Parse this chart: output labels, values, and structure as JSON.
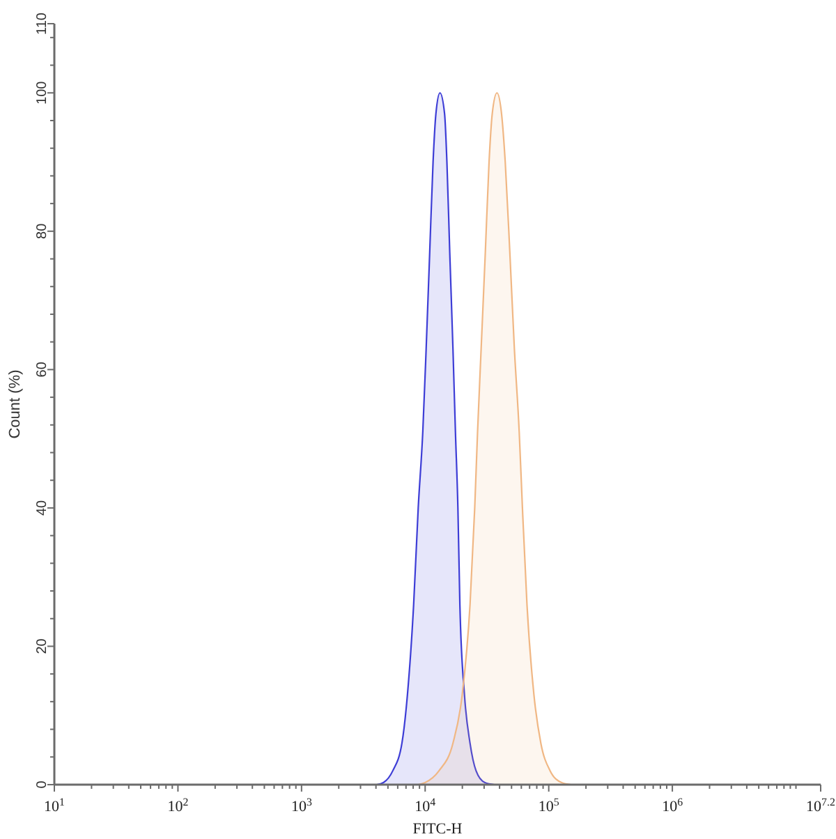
{
  "chart_data": {
    "type": "area",
    "xlabel": "FITC-H",
    "ylabel": "Count (%)",
    "log": "x",
    "xlim": [
      10,
      15848932
    ],
    "ylim": [
      0,
      110
    ],
    "xticks": [
      {
        "value": 10,
        "label": "10$^{1}$"
      },
      {
        "value": 20,
        "label": null
      },
      {
        "value": 30,
        "label": null
      },
      {
        "value": 40,
        "label": null
      },
      {
        "value": 50,
        "label": null
      },
      {
        "value": 60,
        "label": null
      },
      {
        "value": 70,
        "label": null
      },
      {
        "value": 80,
        "label": null
      },
      {
        "value": 90,
        "label": null
      },
      {
        "value": 100,
        "label": "10$^{2}$"
      },
      {
        "value": 200,
        "label": null
      },
      {
        "value": 300,
        "label": null
      },
      {
        "value": 400,
        "label": null
      },
      {
        "value": 500,
        "label": null
      },
      {
        "value": 600,
        "label": null
      },
      {
        "value": 700,
        "label": null
      },
      {
        "value": 800,
        "label": null
      },
      {
        "value": 900,
        "label": null
      },
      {
        "value": 1000,
        "label": "10$^{3}$"
      },
      {
        "value": 2000,
        "label": null
      },
      {
        "value": 3000,
        "label": null
      },
      {
        "value": 4000,
        "label": null
      },
      {
        "value": 5000,
        "label": null
      },
      {
        "value": 6000,
        "label": null
      },
      {
        "value": 7000,
        "label": null
      },
      {
        "value": 8000,
        "label": null
      },
      {
        "value": 9000,
        "label": null
      },
      {
        "value": 10000,
        "label": "10$^{4}$"
      },
      {
        "value": 20000,
        "label": null
      },
      {
        "value": 30000,
        "label": null
      },
      {
        "value": 40000,
        "label": null
      },
      {
        "value": 50000,
        "label": null
      },
      {
        "value": 60000,
        "label": null
      },
      {
        "value": 70000,
        "label": null
      },
      {
        "value": 80000,
        "label": null
      },
      {
        "value": 90000,
        "label": null
      },
      {
        "value": 100000,
        "label": "10$^{5}$"
      },
      {
        "value": 200000,
        "label": null
      },
      {
        "value": 300000,
        "label": null
      },
      {
        "value": 400000,
        "label": null
      },
      {
        "value": 500000,
        "label": null
      },
      {
        "value": 600000,
        "label": null
      },
      {
        "value": 700000,
        "label": null
      },
      {
        "value": 800000,
        "label": null
      },
      {
        "value": 900000,
        "label": null
      },
      {
        "value": 1000000,
        "label": "10$^{6}$"
      },
      {
        "value": 2000000,
        "label": null
      },
      {
        "value": 3000000,
        "label": null
      },
      {
        "value": 4000000,
        "label": null
      },
      {
        "value": 5000000,
        "label": null
      },
      {
        "value": 6000000,
        "label": null
      },
      {
        "value": 7000000,
        "label": null
      },
      {
        "value": 8000000,
        "label": null
      },
      {
        "value": 9000000,
        "label": null
      },
      {
        "value": 10000000,
        "label": null
      },
      {
        "value": 15848932,
        "label": "10$^{7.2}$"
      }
    ],
    "yticks": [
      0,
      {
        "value": 4,
        "label": null
      },
      {
        "value": 8,
        "label": null
      },
      {
        "value": 12,
        "label": null
      },
      {
        "value": 16,
        "label": null
      },
      20,
      {
        "value": 24,
        "label": null
      },
      {
        "value": 28,
        "label": null
      },
      {
        "value": 32,
        "label": null
      },
      {
        "value": 36,
        "label": null
      },
      40,
      {
        "value": 44,
        "label": null
      },
      {
        "value": 48,
        "label": null
      },
      {
        "value": 52,
        "label": null
      },
      {
        "value": 56,
        "label": null
      },
      60,
      {
        "value": 64,
        "label": null
      },
      {
        "value": 68,
        "label": null
      },
      {
        "value": 72,
        "label": null
      },
      {
        "value": 76,
        "label": null
      },
      80,
      {
        "value": 84,
        "label": null
      },
      {
        "value": 88,
        "label": null
      },
      {
        "value": 92,
        "label": null
      },
      {
        "value": 96,
        "label": null
      },
      100,
      {
        "value": 104,
        "label": null
      },
      {
        "value": 108,
        "label": null
      },
      110
    ],
    "series": [
      {
        "color": "#3d3dd6",
        "x": [
          4050,
          4600,
          5470,
          6490,
          7190,
          8070,
          8790,
          9570,
          10190,
          10890,
          11590,
          12220,
          13180,
          14360,
          15000,
          15810,
          16790,
          17580,
          18410,
          19100,
          20800,
          23070,
          25820,
          30410,
          36310
        ],
        "values": [
          0,
          0.3,
          2,
          6,
          13,
          26,
          40,
          51,
          63,
          77,
          90,
          97,
          100,
          97,
          90,
          77,
          63,
          51,
          40,
          26,
          13,
          6,
          2,
          0.3,
          0
        ]
      },
      {
        "color": "#f0b784",
        "x": [
          8790,
          10000,
          12940,
          16790,
          19950,
          23070,
          25180,
          26550,
          28380,
          30690,
          32890,
          34910,
          38110,
          41500,
          44460,
          48420,
          52720,
          57680,
          61240,
          66680,
          75860,
          86300,
          102600,
          127100,
          151400
        ],
        "values": [
          0,
          0.3,
          2,
          6,
          13,
          26,
          40,
          51,
          63,
          77,
          90,
          97,
          100,
          97,
          90,
          77,
          63,
          51,
          40,
          26,
          13,
          6,
          2,
          0.3,
          0
        ]
      }
    ]
  }
}
